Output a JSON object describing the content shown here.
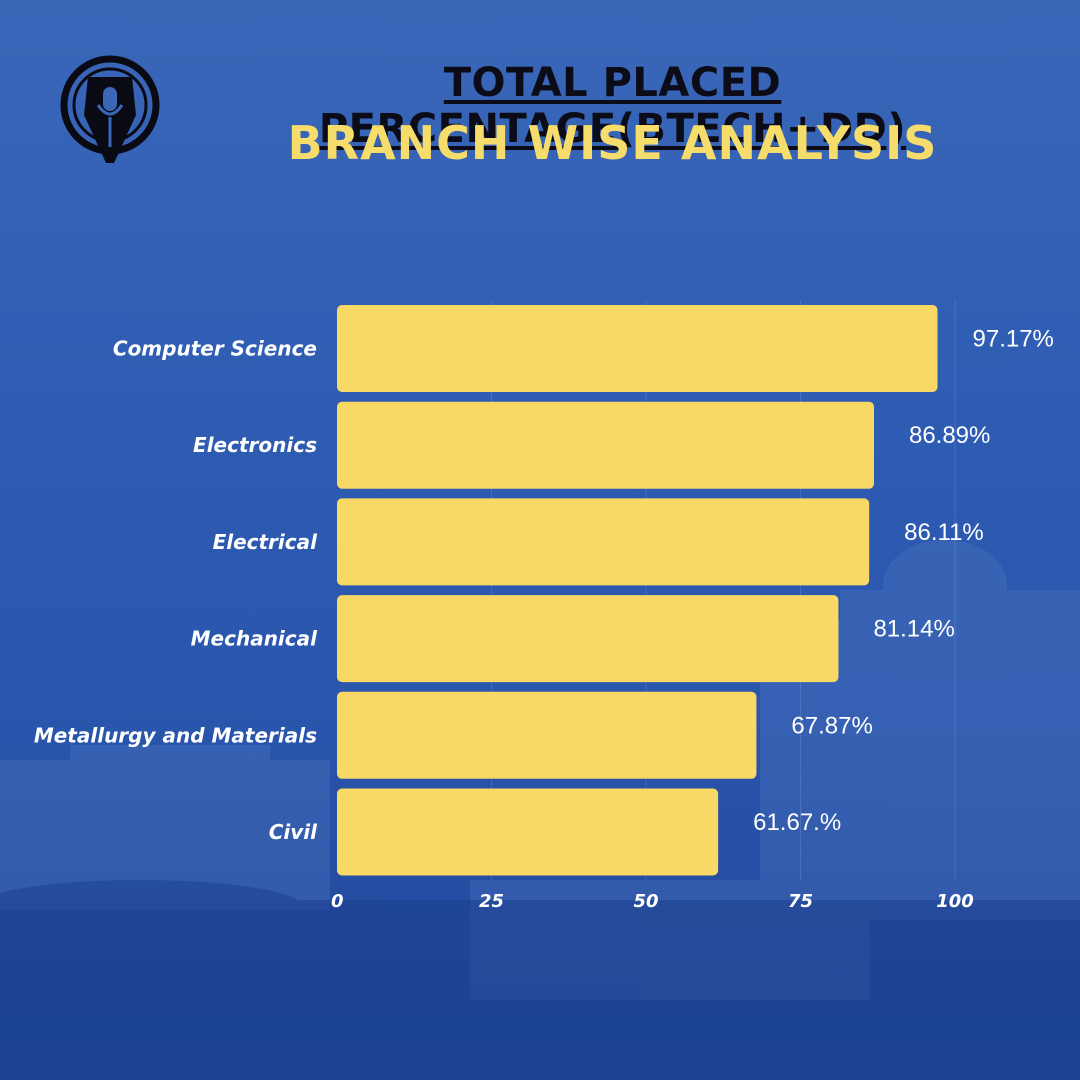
{
  "header": {
    "title": "TOTAL PLACED PERCENTAGE(BTECH+DD)",
    "subtitle": "BRANCH WISE ANALYSIS"
  },
  "colors": {
    "bar": "#f8d966",
    "title": "#0c0c18",
    "subtitle": "#f6dc6a",
    "label": "#ffffff"
  },
  "chart_data": {
    "type": "bar",
    "orientation": "horizontal",
    "title": "TOTAL PLACED PERCENTAGE(BTECH+DD)",
    "subtitle": "BRANCH WISE ANALYSIS",
    "categories": [
      "Computer Science",
      "Electronics",
      "Electrical",
      "Mechanical",
      "Metallurgy and Materials",
      "Civil"
    ],
    "values": [
      97.17,
      86.89,
      86.11,
      81.14,
      67.87,
      61.67
    ],
    "value_labels": [
      "97.17%",
      "86.89%",
      "86.11%",
      "81.14%",
      "67.87%",
      "61.67.%"
    ],
    "xlim": [
      0,
      100
    ],
    "xticks": [
      0,
      25,
      50,
      75,
      100
    ],
    "xtick_labels": [
      "0",
      "25",
      "50",
      "75",
      "100"
    ],
    "xlabel": "",
    "ylabel": "",
    "grid": true,
    "legend": "none"
  }
}
